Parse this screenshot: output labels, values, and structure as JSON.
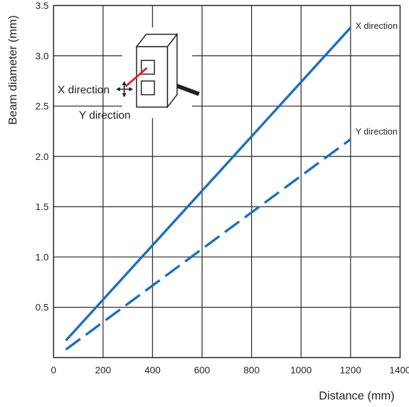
{
  "chart_data": {
    "type": "line",
    "title": "",
    "xlabel": "Distance (mm)",
    "ylabel": "Beam diameter (mm)",
    "xlim": [
      0,
      1400
    ],
    "ylim": [
      0,
      3.5
    ],
    "x_ticks": [
      "0",
      "200",
      "400",
      "600",
      "800",
      "1000",
      "1200",
      "1400"
    ],
    "y_ticks": [
      "0.5",
      "1.0",
      "1.5",
      "2.0",
      "2.5",
      "3.0",
      "3.5"
    ],
    "grid": true,
    "series": [
      {
        "name": "X direction",
        "style": "solid",
        "color": "#1a6fc4",
        "x": [
          50,
          1200
        ],
        "y": [
          0.17,
          3.28
        ]
      },
      {
        "name": "Y direction",
        "style": "dashed",
        "color": "#1a6fc4",
        "x": [
          50,
          1200
        ],
        "y": [
          0.08,
          2.17
        ]
      }
    ],
    "inset": {
      "x_label": "X direction",
      "y_label": "Y direction"
    }
  }
}
